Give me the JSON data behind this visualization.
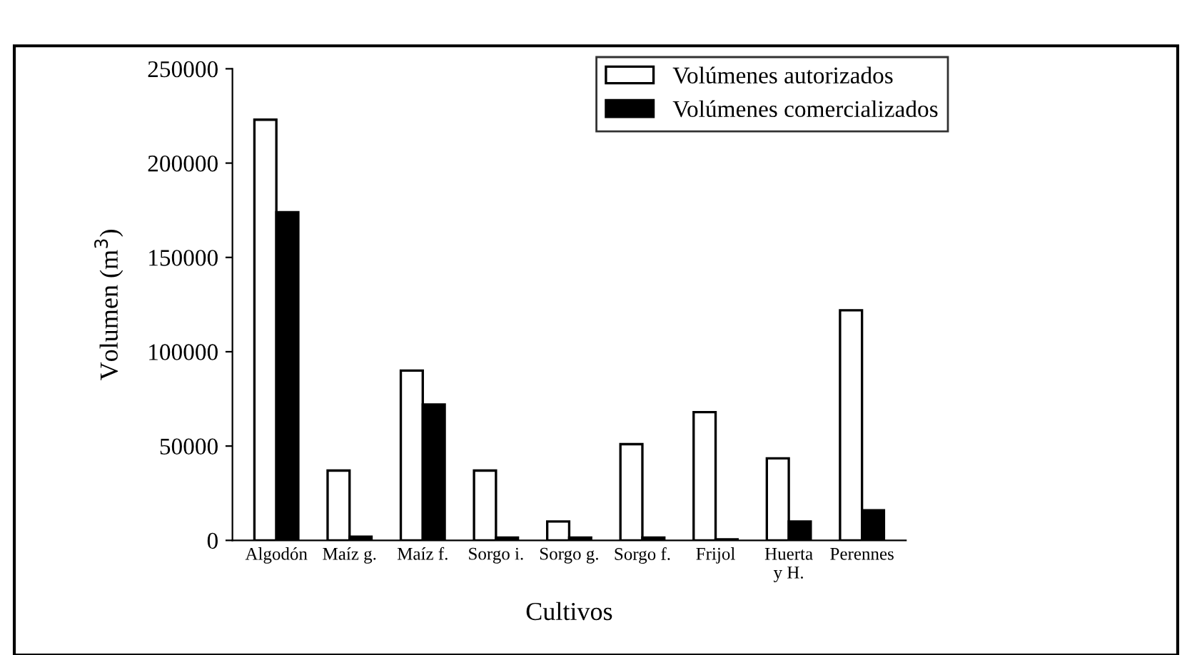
{
  "chart_data": {
    "type": "bar",
    "xlabel": "Cultivos",
    "ylabel": "Volumen (m$^{3}$)",
    "categories": [
      "Algodón",
      "Maíz g.",
      "Maíz f.",
      "Sorgo i.",
      "Sorgo g.",
      "Sorgo f.",
      "Frijol",
      "Huerta\ny H.",
      "Perennes"
    ],
    "series": [
      {
        "name": "Volúmenes autorizados",
        "color": "#ffffff",
        "values": [
          223000,
          37000,
          90000,
          37000,
          10000,
          51000,
          68000,
          43500,
          122000
        ]
      },
      {
        "name": "Volúmenes comercializados",
        "color": "#000000",
        "values": [
          174000,
          2000,
          72000,
          1500,
          1500,
          1500,
          500,
          10000,
          16000
        ]
      }
    ],
    "ylim": [
      0,
      250000
    ],
    "yticks": [
      0,
      50000,
      100000,
      150000,
      200000,
      250000
    ],
    "grid": false,
    "legend": "top right"
  }
}
